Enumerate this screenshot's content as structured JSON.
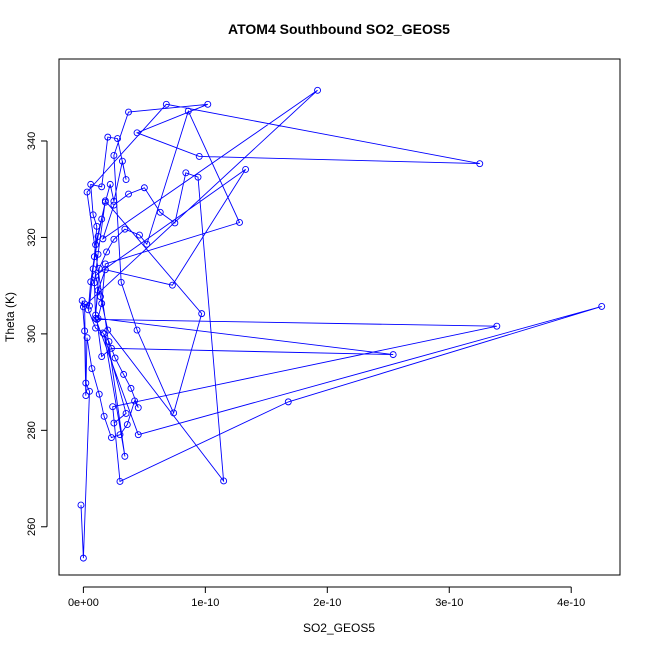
{
  "chart_data": {
    "type": "line",
    "markers": "open-circle",
    "title": "ATOM4 Southbound SO2_GEOS5",
    "xlabel": "SO2_GEOS5",
    "ylabel": "Theta (K)",
    "xlim": [
      -2e-11,
      4.4e-10
    ],
    "ylim": [
      250,
      357
    ],
    "xticks": [
      0,
      1e-10,
      2e-10,
      3e-10,
      4e-10
    ],
    "xtick_labels": [
      "0e+00",
      "1e-10",
      "2e-10",
      "3e-10",
      "4e-10"
    ],
    "yticks": [
      260,
      280,
      300,
      320,
      340
    ],
    "ytick_labels": [
      "260",
      "280",
      "300",
      "320",
      "340"
    ],
    "grid": false,
    "color": "#0000FF",
    "series": [
      {
        "name": "",
        "x": [
          -2e-12,
          0,
          5e-12,
          2e-12,
          1e-12,
          5e-12,
          8e-12,
          1.2e-11,
          1.5e-11,
          1e-11,
          1.8e-11,
          2.2e-11,
          2.5e-11,
          3.2e-11,
          3.5e-11,
          2.8e-11,
          2e-11,
          1.5e-11,
          6e-12,
          8e-12,
          1.1e-11,
          9e-12,
          6e-12,
          4e-12,
          1e-11,
          1.6e-11,
          2.1e-11,
          2.6e-11,
          3.3e-11,
          3.9e-11,
          4.5e-11,
          4.2e-11,
          3.6e-11,
          3e-11,
          2.3e-11,
          1.7e-11,
          1.3e-11,
          7e-12,
          3e-12,
          2e-12,
          1e-12,
          -1e-12,
          0,
          1.92e-10,
          1.6e-11,
          2.5e-11,
          3.7e-11,
          5e-11,
          6.3e-11,
          7.5e-11,
          8.4e-11,
          9.4e-11,
          1.15e-10,
          2e-11,
          1.4e-11,
          1e-11,
          1.33e-10,
          7.3e-11,
          1.8e-11,
          1.2e-11,
          1e-11,
          1.3e-11,
          1.9e-11,
          2.5e-11,
          3.4e-11,
          4.6e-11,
          5.2e-11,
          8.6e-11,
          1.28e-10,
          1.8e-11,
          1.5e-11,
          1.2e-11,
          2.54e-10,
          2.3e-11,
          1.5e-11,
          1.1e-11,
          3.39e-10,
          2.4e-11,
          3e-11,
          1.68e-10,
          4.25e-10,
          4.5e-11,
          1e-11,
          9e-12,
          1.2e-11,
          1.8e-11,
          9.7e-11,
          7.4e-11,
          4.4e-11,
          3.1e-11,
          2.5e-11,
          3.7e-11,
          1.02e-10,
          4.4e-11,
          9.5e-11,
          3.25e-10,
          6.8e-11,
          3e-12,
          3.4e-11,
          1.7e-11,
          3.5e-11,
          2.5e-11
        ],
        "y": [
          264.5,
          253.5,
          288.1,
          289.8,
          306.2,
          305.8,
          313.5,
          320.2,
          323.8,
          318.5,
          327.3,
          331.0,
          327.5,
          335.8,
          332.0,
          340.5,
          340.8,
          330.5,
          331.0,
          324.7,
          322.3,
          316.0,
          310.8,
          305.0,
          301.2,
          300.2,
          298.4,
          295.0,
          291.6,
          288.7,
          284.7,
          286.1,
          281.2,
          279.1,
          278.5,
          282.9,
          287.5,
          292.8,
          299.2,
          287.2,
          300.6,
          306.9,
          305.6,
          350.5,
          319.7,
          326.7,
          329.0,
          330.3,
          325.2,
          323.0,
          333.4,
          332.5,
          269.5,
          300.8,
          307.7,
          312.1,
          334.1,
          310.1,
          313.3,
          309.0,
          303.9,
          313.6,
          317.0,
          319.6,
          321.7,
          320.5,
          318.6,
          346.2,
          323.1,
          314.5,
          306.3,
          303.2,
          295.7,
          297.0,
          295.3,
          303.0,
          301.6,
          284.9,
          269.4,
          285.9,
          305.7,
          279.1,
          303.2,
          310.6,
          316.5,
          327.6,
          304.2,
          283.6,
          300.8,
          310.7,
          337.0,
          346.0,
          347.6,
          341.7,
          336.8,
          335.3,
          347.6,
          329.4,
          274.6,
          300.0,
          283.5,
          281.5
        ]
      }
    ]
  }
}
